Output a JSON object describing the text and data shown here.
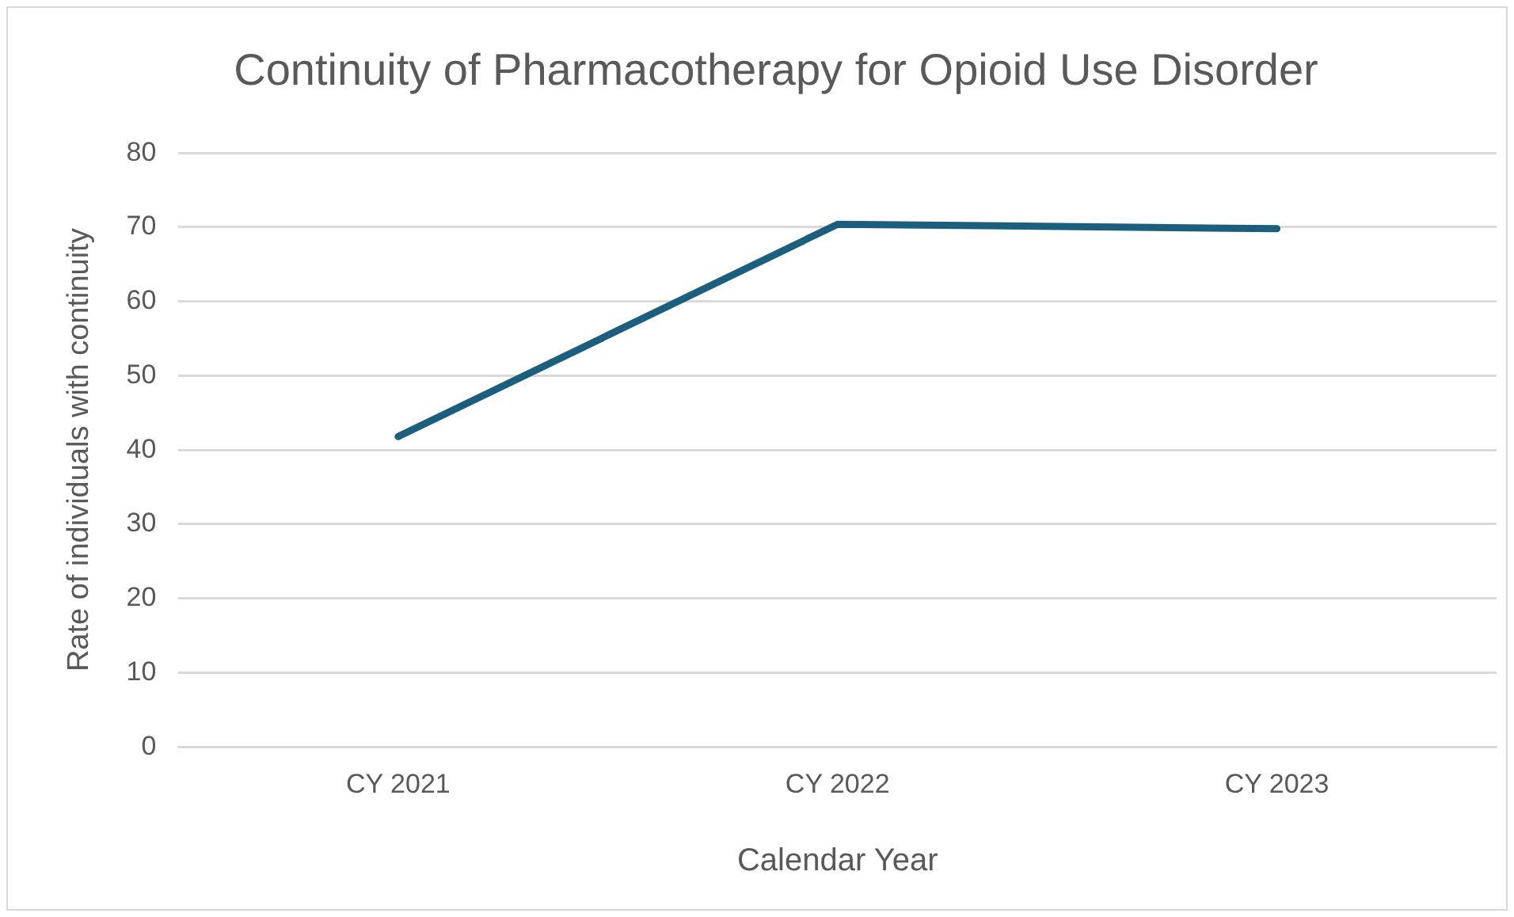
{
  "chart_data": {
    "type": "line",
    "title": "Continuity of Pharmacotherapy for Opioid Use Disorder",
    "xlabel": "Calendar Year",
    "ylabel": "Rate of individuals with continuity",
    "categories": [
      "CY 2021",
      "CY 2022",
      "CY 2023"
    ],
    "series": [
      {
        "color": "#1b5e7e",
        "values": [
          41.8,
          70.4,
          69.8
        ]
      }
    ],
    "ylim": [
      0,
      80
    ],
    "yticks": [
      0,
      10,
      20,
      30,
      40,
      50,
      60,
      70,
      80
    ],
    "grid": "y",
    "legend": false,
    "marker": "none",
    "line_style": "solid"
  }
}
